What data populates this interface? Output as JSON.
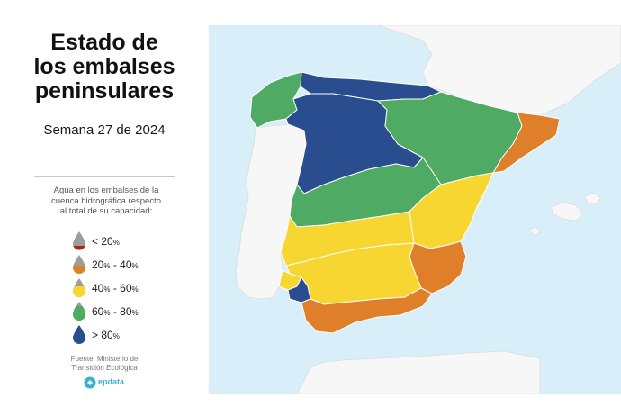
{
  "title": {
    "line1": "Estado de",
    "line2": "los embalses",
    "line3": "peninsulares"
  },
  "subtitle": "Semana 27 de 2024",
  "legend": {
    "caption_line1": "Agua en los embalses de la",
    "caption_line2": "cuenca hidrográfica respecto",
    "caption_line3": "al total de su capacidad:",
    "items": [
      {
        "prefix": "< 20",
        "pct1": "%",
        "mid": "",
        "pct2": "",
        "color": "#9c9c9c",
        "accent": "#b32020",
        "icon": "gray-red-drop-icon"
      },
      {
        "prefix": "20",
        "pct1": "%",
        "mid": " - 40",
        "pct2": "%",
        "color": "#e07f2a",
        "icon": "orange-drop-icon"
      },
      {
        "prefix": "40",
        "pct1": "%",
        "mid": " - 60",
        "pct2": "%",
        "color": "#f7d631",
        "icon": "yellow-drop-icon"
      },
      {
        "prefix": "60",
        "pct1": "%",
        "mid": " - 80",
        "pct2": "%",
        "color": "#4fab63",
        "icon": "green-drop-icon"
      },
      {
        "prefix": "> 80",
        "pct1": "%",
        "mid": "",
        "pct2": "",
        "color": "#2a4d8f",
        "icon": "blue-drop-icon"
      }
    ]
  },
  "source": {
    "line1": "Fuente: Ministerio de",
    "line2": "Transición Ecológica"
  },
  "logo": {
    "text": "epdata",
    "color": "#38b0d1",
    "icon": "epdata-logo-icon"
  },
  "map": {
    "sea_color": "#d8eef8",
    "basins": [
      {
        "name": "Miño-Sil y Galicia Costa",
        "range": "60-80",
        "color": "#4fab63"
      },
      {
        "name": "Cantábrico",
        "range": ">80",
        "color": "#2a4d8f"
      },
      {
        "name": "Duero",
        "range": ">80",
        "color": "#2a4d8f"
      },
      {
        "name": "Ebro",
        "range": "60-80",
        "color": "#4fab63"
      },
      {
        "name": "Cuencas internas de Cataluña",
        "range": "20-40",
        "color": "#e07f2a"
      },
      {
        "name": "Tajo",
        "range": "60-80",
        "color": "#4fab63"
      },
      {
        "name": "Júcar",
        "range": "40-60",
        "color": "#f7d631"
      },
      {
        "name": "Guadiana",
        "range": "40-60",
        "color": "#f7d631"
      },
      {
        "name": "Segura",
        "range": "20-40",
        "color": "#e07f2a"
      },
      {
        "name": "Guadalquivir",
        "range": "40-60",
        "color": "#f7d631"
      },
      {
        "name": "Tinto, Odiel y Piedras",
        "range": "40-60",
        "color": "#f7d631"
      },
      {
        "name": "Guadalete-Barbate",
        "range": ">80",
        "color": "#2a4d8f"
      },
      {
        "name": "Cuencas Mediterráneas Andaluzas",
        "range": "20-40",
        "color": "#e07f2a"
      }
    ]
  }
}
